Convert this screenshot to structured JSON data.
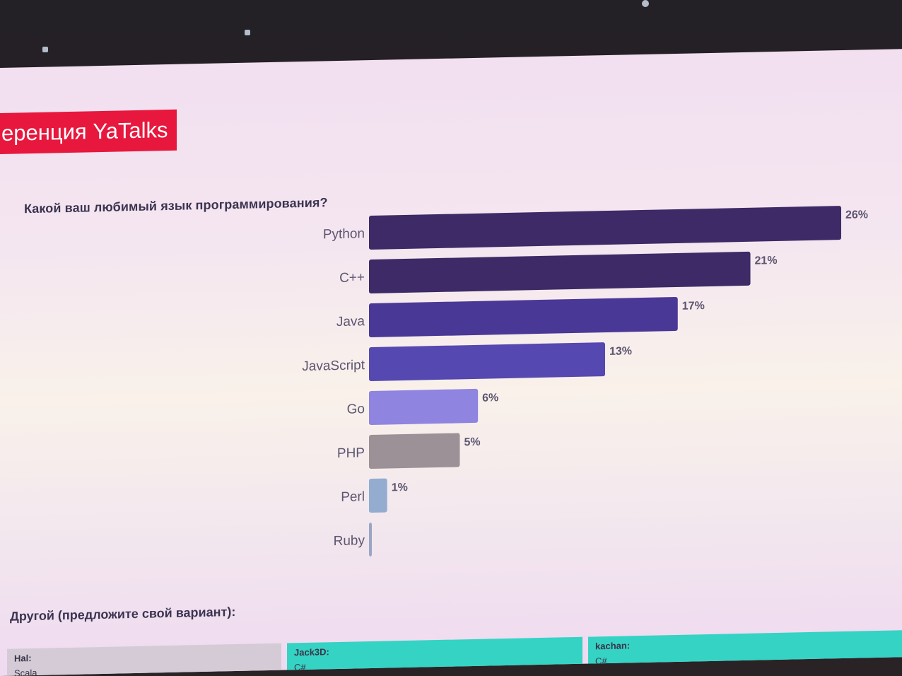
{
  "banner": {
    "title": "еренция YaTalks"
  },
  "question": "Какой ваш любимый язык программирования?",
  "other_title": "Другой (предложите свой вариант):",
  "answers": [
    {
      "author": "Hal:",
      "text": "Scala"
    },
    {
      "author": "Jack3D:",
      "text": "C#"
    },
    {
      "author": "kachan:",
      "text": "C#"
    }
  ],
  "chart_data": {
    "type": "bar",
    "orientation": "horizontal",
    "title": "Какой ваш любимый язык программирования?",
    "categories": [
      "Python",
      "C++",
      "Java",
      "JavaScript",
      "Go",
      "PHP",
      "Perl",
      "Ruby"
    ],
    "values": [
      26,
      21,
      17,
      13,
      6,
      5,
      1,
      0
    ],
    "value_labels": [
      "26%",
      "21%",
      "17%",
      "13%",
      "6%",
      "5%",
      "1%",
      ""
    ],
    "colors": [
      "#3d2a66",
      "#3d2a66",
      "#4a3897",
      "#5548b0",
      "#8f84e0",
      "#9b9196",
      "#93acd0",
      "#9aa6c4"
    ],
    "unit": "%",
    "xlim": [
      0,
      26
    ],
    "grid": false,
    "legend": "none"
  }
}
